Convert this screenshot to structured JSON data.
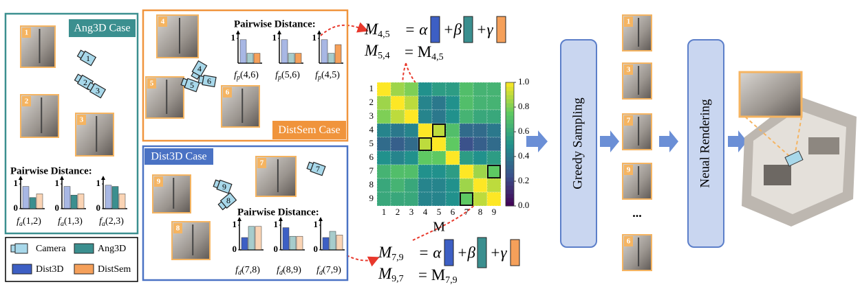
{
  "legend": {
    "items": [
      {
        "name": "Camera",
        "color": "#a8d8ea"
      },
      {
        "name": "Ang3D",
        "color": "#3b8f8f"
      },
      {
        "name": "Dist3D",
        "color": "#3d5fc4"
      },
      {
        "name": "DistSem",
        "color": "#f5a05a"
      }
    ]
  },
  "ang3d": {
    "title": "Ang3D Case",
    "color": "#3b8f8f",
    "images": [
      "1",
      "2",
      "3"
    ],
    "cameras": [
      "1",
      "2",
      "3"
    ],
    "pairwise_title": "Pairwise Distance:",
    "emphasis": 1,
    "ylim": [
      0,
      1
    ],
    "yticks": [
      0,
      1
    ],
    "charts": [
      {
        "f": "f",
        "sub": "a",
        "args": "(1,2)",
        "values": [
          0.9,
          0.45,
          0.6
        ]
      },
      {
        "f": "f",
        "sub": "a",
        "args": "(1,3)",
        "values": [
          0.9,
          0.55,
          0.6
        ]
      },
      {
        "f": "f",
        "sub": "a",
        "args": "(2,3)",
        "values": [
          0.95,
          0.9,
          0.6
        ]
      }
    ]
  },
  "distsem": {
    "title": "DistSem Case",
    "color": "#f0943c",
    "images": [
      "4",
      "5",
      "6"
    ],
    "cameras": [
      "4",
      "5",
      "6"
    ],
    "pairwise_title": "Pairwise Distance:",
    "emphasis": 3,
    "ylim": [
      0,
      1
    ],
    "yticks": [
      1
    ],
    "charts": [
      {
        "f": "f",
        "sub": "p",
        "args": "(4,6)",
        "values": [
          0.95,
          0.4,
          0.4
        ]
      },
      {
        "f": "f",
        "sub": "p",
        "args": "(5,6)",
        "values": [
          0.95,
          0.4,
          0.4
        ]
      },
      {
        "f": "f",
        "sub": "p",
        "args": "(4,5)",
        "values": [
          0.95,
          0.4,
          0.75
        ]
      }
    ]
  },
  "dist3d": {
    "title": "Dist3D Case",
    "color": "#4a72c4",
    "images": [
      "9",
      "7",
      "8"
    ],
    "cameras": [
      "7",
      "9",
      "8"
    ],
    "pairwise_title": "Pairwise Distance:",
    "emphasis": 2,
    "ylim": [
      0,
      1
    ],
    "yticks": [
      0,
      1
    ],
    "charts": [
      {
        "f": "f",
        "sub": "d",
        "args": "(7,8)",
        "values": [
          0.5,
          0.95,
          0.95
        ]
      },
      {
        "f": "f",
        "sub": "d",
        "args": "(8,9)",
        "values": [
          0.9,
          0.55,
          0.55
        ]
      },
      {
        "f": "f",
        "sub": "d",
        "args": "(7,9)",
        "values": [
          0.5,
          0.75,
          0.6
        ]
      }
    ]
  },
  "equations": [
    {
      "symbol": "M",
      "sub": "4,5",
      "terms": [
        "= α",
        "+β",
        "+γ"
      ]
    },
    {
      "symbol": "M",
      "sub": "5,4",
      "rhs": "= M",
      "rhs_sub": "4,5"
    },
    {
      "symbol": "M",
      "sub": "7,9",
      "terms": [
        "= α",
        "+β",
        "+γ"
      ]
    },
    {
      "symbol": "M",
      "sub": "9,7",
      "rhs": "= M",
      "rhs_sub": "7,9"
    }
  ],
  "heatmap": {
    "rows": [
      "1",
      "2",
      "3",
      "4",
      "5",
      "6",
      "7",
      "8",
      "9"
    ],
    "cols": [
      "1",
      "2",
      "3",
      "4",
      "5",
      "6",
      "7",
      "8",
      "9"
    ],
    "xlabel": "M",
    "values": [
      [
        1.0,
        0.85,
        0.8,
        0.5,
        0.55,
        0.55,
        0.7,
        0.65,
        0.65
      ],
      [
        0.85,
        1.0,
        0.9,
        0.45,
        0.4,
        0.5,
        0.7,
        0.65,
        0.65
      ],
      [
        0.8,
        0.9,
        1.0,
        0.45,
        0.4,
        0.5,
        0.65,
        0.6,
        0.6
      ],
      [
        0.45,
        0.4,
        0.45,
        1.0,
        0.9,
        0.7,
        0.35,
        0.35,
        0.4
      ],
      [
        0.35,
        0.3,
        0.35,
        0.9,
        1.0,
        0.75,
        0.25,
        0.3,
        0.35
      ],
      [
        0.5,
        0.45,
        0.5,
        0.75,
        0.75,
        1.0,
        0.55,
        0.5,
        0.55
      ],
      [
        0.65,
        0.7,
        0.7,
        0.5,
        0.5,
        0.55,
        1.0,
        0.85,
        0.75
      ],
      [
        0.6,
        0.65,
        0.6,
        0.45,
        0.45,
        0.5,
        0.85,
        1.0,
        0.9
      ],
      [
        0.6,
        0.6,
        0.6,
        0.45,
        0.45,
        0.5,
        0.75,
        0.9,
        1.0
      ]
    ],
    "clim": [
      0,
      1
    ],
    "ticks": [
      {
        "value": 0,
        "label": "0.0"
      },
      0.2,
      0.4,
      0.6,
      0.8,
      {
        "value": 1,
        "label": "1.0"
      }
    ],
    "highlight_cells": [
      [
        4,
        5
      ],
      [
        5,
        4
      ],
      [
        7,
        9
      ],
      [
        9,
        7
      ]
    ]
  },
  "steps": [
    "Greedy Sampling",
    "Neual Rendering"
  ],
  "selected_images": [
    "1",
    "3",
    "7",
    "9",
    "6"
  ],
  "ellipsis": "..."
}
